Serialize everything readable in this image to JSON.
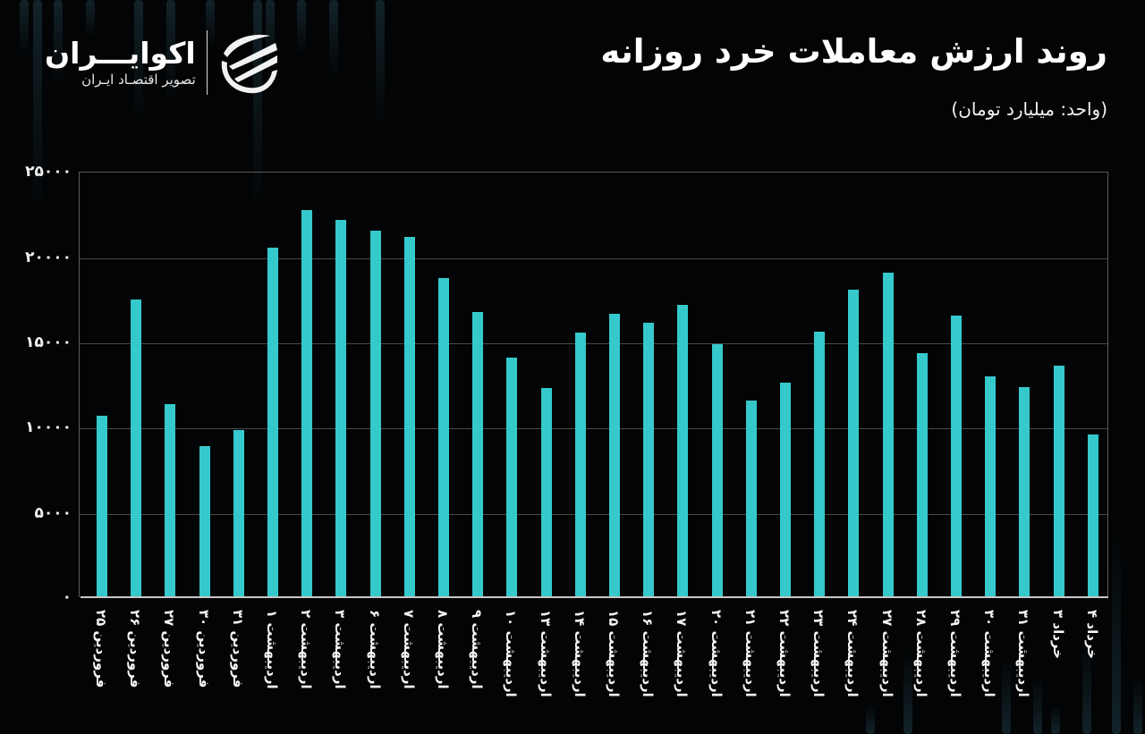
{
  "header": {
    "title": "روند ارزش معاملات خرد روزانه",
    "subtitle": "(واحد: میلیارد تومان)"
  },
  "logo": {
    "name": "اکوایـــران",
    "tagline": "تصویر اقتصـاد ایـران",
    "icon": "ecoiran-swoosh-logo-icon"
  },
  "colors": {
    "background": "#030405",
    "bar": "#35c9cc",
    "grid": "#4a4a4a",
    "text": "#ffffff"
  },
  "y_ticks": [
    "۲۵۰۰۰",
    "۲۰۰۰۰",
    "۱۵۰۰۰",
    "۱۰۰۰۰",
    "۵۰۰۰",
    "۰"
  ],
  "chart_data": {
    "type": "bar",
    "title": "روند ارزش معاملات خرد روزانه",
    "subtitle": "(واحد: میلیارد تومان)",
    "xlabel": "",
    "ylabel": "میلیارد تومان",
    "ylim": [
      0,
      25000
    ],
    "yticks": [
      0,
      5000,
      10000,
      15000,
      20000,
      25000
    ],
    "grid": true,
    "legend": null,
    "categories": [
      "فروردین ۲۵",
      "فروردین ۲۶",
      "فروردین ۲۷",
      "فروردین ۳۰",
      "فروردین ۳۱",
      "اردیبهشت ۱",
      "اردیبهشت ۲",
      "اردیبهشت ۳",
      "اردیبهشت ۶",
      "اردیبهشت ۷",
      "اردیبهشت ۸",
      "اردیبهشت ۹",
      "اردیبهشت ۱۰",
      "اردیبهشت ۱۳",
      "اردیبهشت ۱۴",
      "اردیبهشت ۱۵",
      "اردیبهشت ۱۶",
      "اردیبهشت ۱۷",
      "اردیبهشت ۲۰",
      "اردیبهشت ۲۱",
      "اردیبهشت ۲۲",
      "اردیبهشت ۲۳",
      "اردیبهشت ۲۴",
      "اردیبهشت ۲۷",
      "اردیبهشت ۲۸",
      "اردیبهشت ۲۹",
      "اردیبهشت ۳۰",
      "اردیبهشت ۳۱",
      "خرداد ۳",
      "خرداد ۴"
    ],
    "values": [
      10650,
      17500,
      11350,
      8900,
      9800,
      20550,
      22750,
      22150,
      21550,
      21150,
      18750,
      16750,
      14100,
      12300,
      15550,
      16650,
      16100,
      17150,
      14850,
      11550,
      12600,
      15600,
      18050,
      19050,
      14350,
      16550,
      12950,
      12350,
      13600,
      9550
    ]
  }
}
